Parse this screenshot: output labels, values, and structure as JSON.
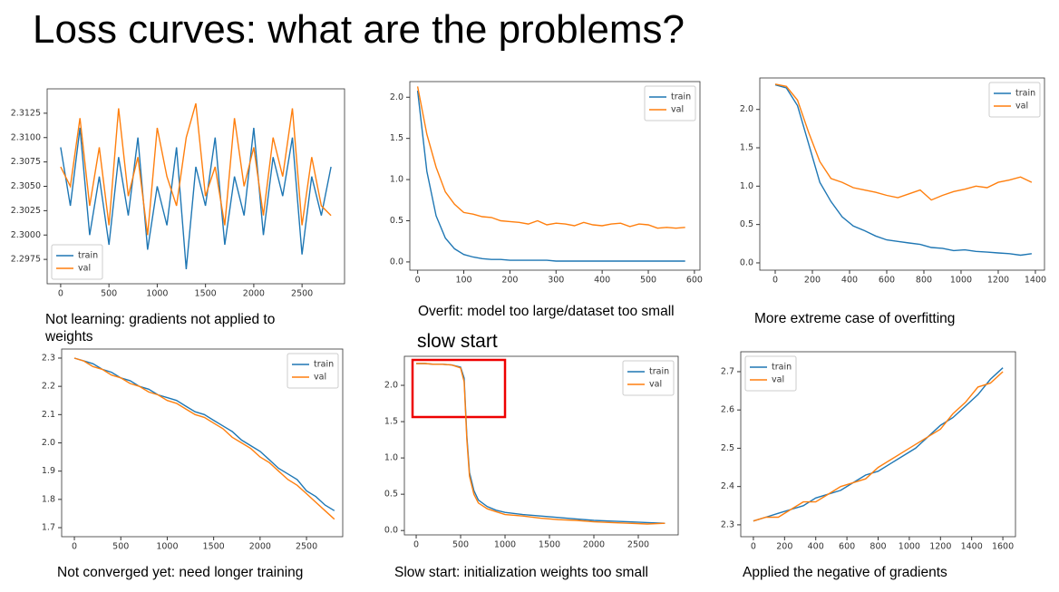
{
  "title": "Loss curves: what are the problems?",
  "chart_data": [
    {
      "type": "line",
      "caption": "Not learning: gradients not applied to weights",
      "legend": "lower-left",
      "x": [
        0,
        100,
        200,
        300,
        400,
        500,
        600,
        700,
        800,
        900,
        1000,
        1100,
        1200,
        1300,
        1400,
        1500,
        1600,
        1700,
        1800,
        1900,
        2000,
        2100,
        2200,
        2300,
        2400,
        2500,
        2600,
        2700,
        2800
      ],
      "series": [
        {
          "name": "train",
          "color": "#1f77b4",
          "values": [
            2.309,
            2.303,
            2.311,
            2.3,
            2.306,
            2.299,
            2.308,
            2.302,
            2.31,
            2.2985,
            2.305,
            2.301,
            2.309,
            2.2965,
            2.307,
            2.303,
            2.31,
            2.299,
            2.306,
            2.302,
            2.311,
            2.3,
            2.308,
            2.304,
            2.31,
            2.298,
            2.306,
            2.302,
            2.307
          ]
        },
        {
          "name": "val",
          "color": "#ff7f0e",
          "values": [
            2.307,
            2.305,
            2.312,
            2.303,
            2.309,
            2.301,
            2.313,
            2.304,
            2.308,
            2.3,
            2.311,
            2.306,
            2.303,
            2.31,
            2.3135,
            2.304,
            2.307,
            2.301,
            2.312,
            2.305,
            2.309,
            2.302,
            2.31,
            2.306,
            2.313,
            2.301,
            2.308,
            2.303,
            2.302
          ]
        }
      ],
      "xlim": [
        -140,
        2940
      ],
      "ylim": [
        2.295,
        2.315
      ],
      "xticks": [
        0,
        500,
        1000,
        1500,
        2000,
        2500
      ],
      "yticks": [
        2.2975,
        {
          "value": 2.3,
          "label": "2.3000"
        },
        2.3025,
        {
          "value": 2.305,
          "label": "2.3050"
        },
        2.3075,
        {
          "value": 2.31,
          "label": "2.3100"
        },
        2.3125
      ]
    },
    {
      "type": "line",
      "caption": "Overfit: model too large/dataset too small",
      "legend": "upper-right",
      "x": [
        0,
        20,
        40,
        60,
        80,
        100,
        120,
        140,
        160,
        180,
        200,
        220,
        240,
        260,
        280,
        300,
        320,
        340,
        360,
        380,
        400,
        420,
        440,
        460,
        480,
        500,
        520,
        540,
        560,
        580
      ],
      "series": [
        {
          "name": "train",
          "color": "#1f77b4",
          "values": [
            2.08,
            1.1,
            0.56,
            0.29,
            0.16,
            0.09,
            0.06,
            0.04,
            0.03,
            0.03,
            0.02,
            0.02,
            0.02,
            0.02,
            0.02,
            0.01,
            0.01,
            0.01,
            0.01,
            0.01,
            0.01,
            0.01,
            0.01,
            0.01,
            0.01,
            0.01,
            0.01,
            0.01,
            0.01,
            0.01
          ]
        },
        {
          "name": "val",
          "color": "#ff7f0e",
          "values": [
            2.13,
            1.55,
            1.15,
            0.85,
            0.7,
            0.6,
            0.58,
            0.55,
            0.54,
            0.5,
            0.49,
            0.48,
            0.46,
            0.5,
            0.45,
            0.47,
            0.46,
            0.44,
            0.48,
            0.45,
            0.44,
            0.46,
            0.47,
            0.43,
            0.46,
            0.45,
            0.41,
            0.42,
            0.41,
            0.42
          ]
        }
      ],
      "xlim": [
        -17,
        612
      ],
      "ylim": [
        -0.1,
        2.19
      ],
      "xticks": [
        0,
        100,
        200,
        300,
        400,
        500,
        600
      ],
      "yticks": [
        {
          "value": 0,
          "label": "0.0"
        },
        0.5,
        {
          "value": 1,
          "label": "1.0"
        },
        1.5,
        {
          "value": 2,
          "label": "2.0"
        }
      ]
    },
    {
      "type": "line",
      "caption": "More extreme case of overfitting",
      "legend": "upper-right",
      "x": [
        0,
        60,
        120,
        180,
        240,
        300,
        360,
        420,
        480,
        540,
        600,
        660,
        720,
        780,
        840,
        900,
        960,
        1020,
        1080,
        1140,
        1200,
        1260,
        1320,
        1380
      ],
      "series": [
        {
          "name": "train",
          "color": "#1f77b4",
          "values": [
            2.32,
            2.28,
            2.05,
            1.55,
            1.05,
            0.8,
            0.6,
            0.48,
            0.42,
            0.35,
            0.3,
            0.28,
            0.26,
            0.24,
            0.2,
            0.19,
            0.16,
            0.17,
            0.15,
            0.14,
            0.13,
            0.12,
            0.1,
            0.12
          ]
        },
        {
          "name": "val",
          "color": "#ff7f0e",
          "values": [
            2.33,
            2.3,
            2.12,
            1.7,
            1.32,
            1.1,
            1.05,
            0.98,
            0.95,
            0.92,
            0.88,
            0.85,
            0.9,
            0.95,
            0.82,
            0.88,
            0.93,
            0.96,
            1.0,
            0.98,
            1.05,
            1.08,
            1.12,
            1.05
          ]
        }
      ],
      "xlim": [
        -83,
        1449
      ],
      "ylim": [
        -0.095,
        2.41
      ],
      "xticks": [
        0,
        200,
        400,
        600,
        800,
        1000,
        1200,
        1400
      ],
      "yticks": [
        {
          "value": 0,
          "label": "0.0"
        },
        0.5,
        {
          "value": 1,
          "label": "1.0"
        },
        1.5,
        {
          "value": 2,
          "label": "2.0"
        }
      ]
    },
    {
      "type": "line",
      "caption": "Not converged yet: need longer training",
      "legend": "upper-right",
      "x": [
        0,
        100,
        200,
        300,
        400,
        500,
        600,
        700,
        800,
        900,
        1000,
        1100,
        1200,
        1300,
        1400,
        1500,
        1600,
        1700,
        1800,
        1900,
        2000,
        2100,
        2200,
        2300,
        2400,
        2500,
        2600,
        2700,
        2800
      ],
      "series": [
        {
          "name": "train",
          "color": "#1f77b4",
          "values": [
            2.3,
            2.29,
            2.28,
            2.26,
            2.25,
            2.23,
            2.22,
            2.2,
            2.19,
            2.17,
            2.16,
            2.15,
            2.13,
            2.11,
            2.1,
            2.08,
            2.06,
            2.04,
            2.01,
            1.99,
            1.97,
            1.94,
            1.91,
            1.89,
            1.87,
            1.83,
            1.81,
            1.78,
            1.76
          ]
        },
        {
          "name": "val",
          "color": "#ff7f0e",
          "values": [
            2.3,
            2.29,
            2.27,
            2.26,
            2.24,
            2.23,
            2.21,
            2.2,
            2.18,
            2.17,
            2.15,
            2.14,
            2.12,
            2.1,
            2.09,
            2.07,
            2.05,
            2.02,
            2.0,
            1.98,
            1.95,
            1.93,
            1.9,
            1.87,
            1.85,
            1.82,
            1.79,
            1.76,
            1.73
          ]
        }
      ],
      "xlim": [
        -137,
        2890
      ],
      "ylim": [
        1.668,
        2.332
      ],
      "xticks": [
        0,
        500,
        1000,
        1500,
        2000,
        2500
      ],
      "yticks": [
        1.7,
        1.8,
        1.9,
        {
          "value": 2,
          "label": "2.0"
        },
        2.1,
        2.2,
        2.3
      ]
    },
    {
      "type": "line",
      "caption": "Slow start: initialization weights too small",
      "annotation": "slow start",
      "legend": "upper-right",
      "x": [
        0,
        100,
        200,
        300,
        400,
        500,
        540,
        570,
        600,
        650,
        700,
        800,
        900,
        1000,
        1200,
        1400,
        1600,
        1800,
        2000,
        2200,
        2400,
        2600,
        2800
      ],
      "series": [
        {
          "name": "train",
          "color": "#1f77b4",
          "values": [
            2.3,
            2.3,
            2.29,
            2.29,
            2.28,
            2.25,
            2.1,
            1.3,
            0.8,
            0.55,
            0.42,
            0.33,
            0.28,
            0.25,
            0.22,
            0.2,
            0.18,
            0.16,
            0.14,
            0.13,
            0.12,
            0.11,
            0.1
          ]
        },
        {
          "name": "val",
          "color": "#ff7f0e",
          "values": [
            2.3,
            2.3,
            2.29,
            2.29,
            2.28,
            2.24,
            2.05,
            1.25,
            0.75,
            0.5,
            0.38,
            0.3,
            0.26,
            0.22,
            0.2,
            0.17,
            0.15,
            0.14,
            0.12,
            0.11,
            0.1,
            0.09,
            0.1
          ]
        }
      ],
      "xlim": [
        -133,
        2949
      ],
      "ylim": [
        -0.06,
        2.4
      ],
      "xticks": [
        0,
        500,
        1000,
        1500,
        2000,
        2500
      ],
      "yticks": [
        {
          "value": 0,
          "label": "0.0"
        },
        0.5,
        {
          "value": 1,
          "label": "1.0"
        },
        1.5,
        {
          "value": 2,
          "label": "2.0"
        }
      ]
    },
    {
      "type": "line",
      "caption": "Applied the negative of gradients",
      "legend": "upper-left",
      "x": [
        0,
        80,
        160,
        240,
        320,
        400,
        480,
        560,
        640,
        720,
        800,
        880,
        960,
        1040,
        1120,
        1200,
        1280,
        1360,
        1440,
        1520,
        1600
      ],
      "series": [
        {
          "name": "train",
          "color": "#1f77b4",
          "values": [
            2.31,
            2.32,
            2.33,
            2.34,
            2.35,
            2.37,
            2.38,
            2.39,
            2.41,
            2.43,
            2.44,
            2.46,
            2.48,
            2.5,
            2.53,
            2.56,
            2.58,
            2.61,
            2.64,
            2.68,
            2.71
          ]
        },
        {
          "name": "val",
          "color": "#ff7f0e",
          "values": [
            2.31,
            2.32,
            2.32,
            2.34,
            2.36,
            2.36,
            2.38,
            2.4,
            2.41,
            2.42,
            2.45,
            2.47,
            2.49,
            2.51,
            2.53,
            2.55,
            2.59,
            2.62,
            2.66,
            2.67,
            2.7
          ]
        }
      ],
      "xlim": [
        -81,
        1681
      ],
      "ylim": [
        2.269,
        2.752
      ],
      "xticks": [
        0,
        200,
        400,
        600,
        800,
        1000,
        1200,
        1400,
        1600
      ],
      "yticks": [
        2.3,
        2.4,
        2.5,
        2.6,
        2.7
      ]
    }
  ]
}
